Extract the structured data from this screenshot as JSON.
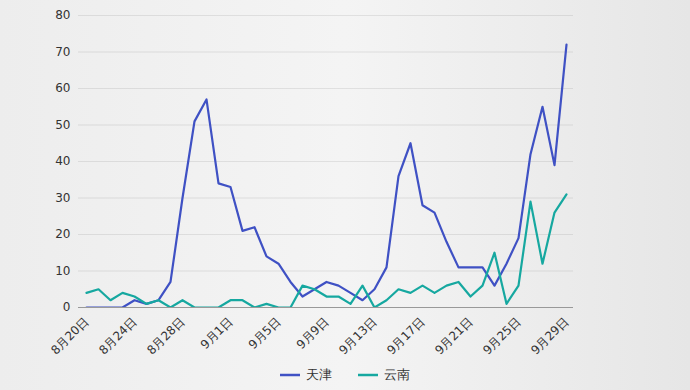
{
  "chart_data": {
    "type": "line",
    "categories": [
      "8月20日",
      null,
      null,
      null,
      "8月24日",
      null,
      null,
      null,
      "8月28日",
      null,
      null,
      null,
      "9月1日",
      null,
      null,
      null,
      "9月5日",
      null,
      null,
      null,
      "9月9日",
      null,
      null,
      null,
      "9月13日",
      null,
      null,
      null,
      "9月17日",
      null,
      null,
      null,
      "9月21日",
      null,
      null,
      null,
      "9月25日",
      null,
      null,
      null,
      "9月29日"
    ],
    "series": [
      {
        "name": "天津",
        "color": "#3f51c4",
        "values": [
          0,
          0,
          0,
          0,
          2,
          1,
          2,
          7,
          30,
          51,
          57,
          34,
          33,
          21,
          22,
          14,
          12,
          7,
          3,
          5,
          7,
          6,
          4,
          2,
          5,
          11,
          36,
          45,
          28,
          26,
          18,
          11,
          11,
          11,
          6,
          12,
          19,
          42,
          55,
          39,
          72
        ]
      },
      {
        "name": "云南",
        "color": "#16a8a0",
        "values": [
          4,
          5,
          2,
          4,
          3,
          1,
          2,
          0,
          2,
          0,
          0,
          0,
          2,
          2,
          0,
          1,
          0,
          0,
          6,
          5,
          3,
          3,
          1,
          6,
          0,
          2,
          5,
          4,
          6,
          4,
          6,
          7,
          3,
          6,
          15,
          1,
          6,
          29,
          12,
          26,
          31
        ]
      }
    ],
    "ylim": [
      0,
      80
    ],
    "yticks": [
      0,
      10,
      20,
      30,
      40,
      50,
      60,
      70,
      80
    ],
    "grid": true,
    "legend": "bottom"
  }
}
